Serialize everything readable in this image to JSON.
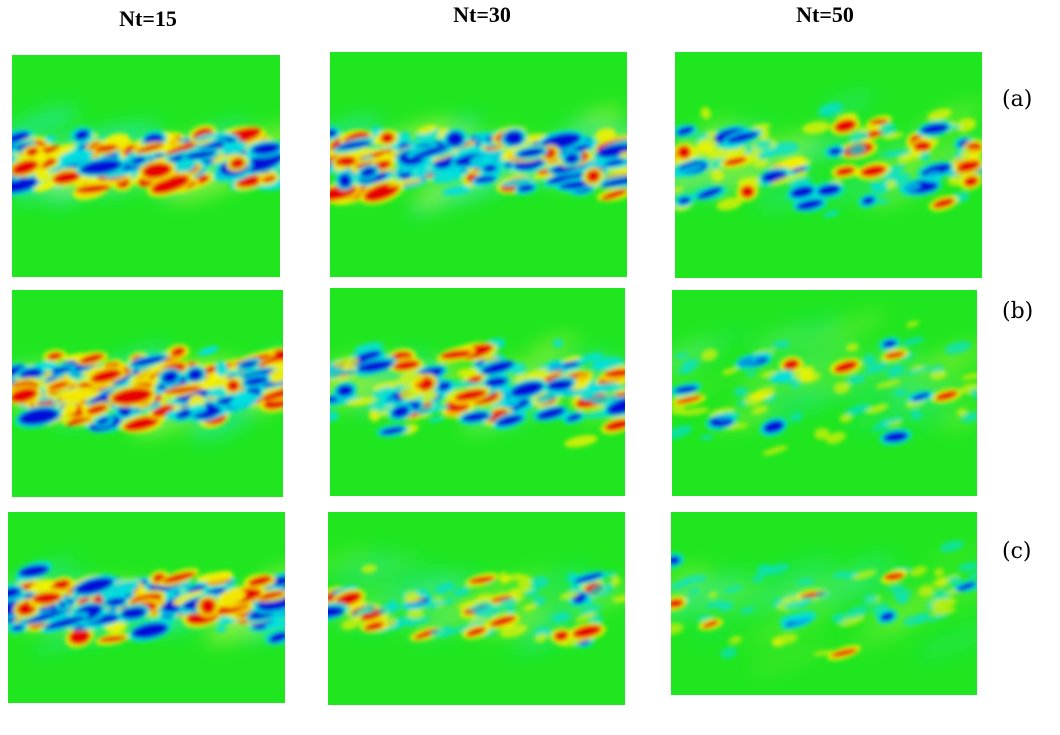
{
  "columns": [
    "Nt=15",
    "Nt=30",
    "Nt=50"
  ],
  "rows": [
    "(a)",
    "(b)",
    "(c)"
  ]
}
